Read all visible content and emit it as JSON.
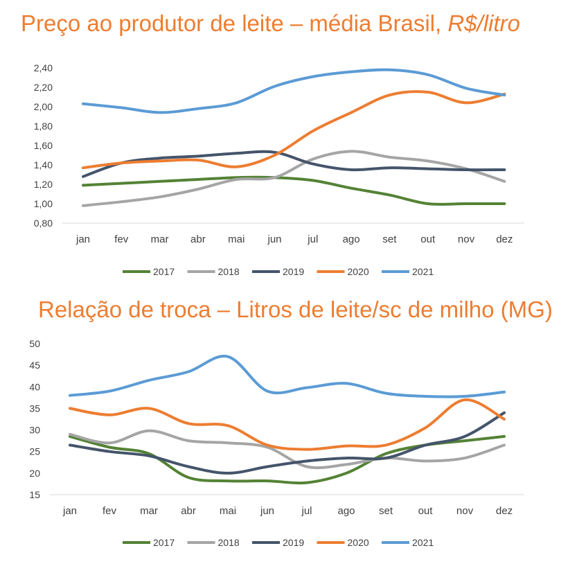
{
  "chart_data": [
    {
      "type": "line",
      "title": "Preço ao produtor de leite – média Brasil,",
      "title_suffix": "R$/litro",
      "categories": [
        "jan",
        "fev",
        "mar",
        "abr",
        "mai",
        "jun",
        "jul",
        "ago",
        "set",
        "out",
        "nov",
        "dez"
      ],
      "ylim": [
        0.8,
        2.4
      ],
      "yticks": [
        "0,80",
        "1,00",
        "1,20",
        "1,40",
        "1,60",
        "1,80",
        "2,00",
        "2,20",
        "2,40"
      ],
      "yticks_values": [
        0.8,
        1.0,
        1.2,
        1.4,
        1.6,
        1.8,
        2.0,
        2.2,
        2.4
      ],
      "grid": false,
      "legend": "bottom",
      "series": [
        {
          "name": "2017",
          "color": "#548235",
          "values": [
            1.19,
            1.21,
            1.23,
            1.25,
            1.27,
            1.27,
            1.24,
            1.16,
            1.09,
            1.0,
            1.0,
            1.0
          ]
        },
        {
          "name": "2018",
          "color": "#A5A5A5",
          "values": [
            0.98,
            1.02,
            1.07,
            1.15,
            1.25,
            1.27,
            1.46,
            1.54,
            1.48,
            1.44,
            1.36,
            1.23
          ]
        },
        {
          "name": "2019",
          "color": "#44546A",
          "values": [
            1.28,
            1.42,
            1.47,
            1.49,
            1.52,
            1.53,
            1.41,
            1.35,
            1.37,
            1.36,
            1.35,
            1.35
          ]
        },
        {
          "name": "2020",
          "color": "#ED7D31",
          "values": [
            1.37,
            1.42,
            1.44,
            1.45,
            1.38,
            1.5,
            1.75,
            1.94,
            2.12,
            2.15,
            2.04,
            2.13
          ]
        },
        {
          "name": "2021",
          "color": "#5B9BD5",
          "values": [
            2.03,
            1.99,
            1.94,
            1.98,
            2.04,
            2.21,
            2.31,
            2.36,
            2.38,
            2.33,
            2.19,
            2.12
          ]
        }
      ]
    },
    {
      "type": "line",
      "title": "Relação de troca – Litros de leite/sc de milho (MG)",
      "categories": [
        "jan",
        "fev",
        "mar",
        "abr",
        "mai",
        "jun",
        "jul",
        "ago",
        "set",
        "out",
        "nov",
        "dez"
      ],
      "ylim": [
        15,
        50
      ],
      "yticks": [
        "15",
        "20",
        "25",
        "30",
        "35",
        "40",
        "45",
        "50"
      ],
      "yticks_values": [
        15,
        20,
        25,
        30,
        35,
        40,
        45,
        50
      ],
      "grid": false,
      "legend": "bottom",
      "series": [
        {
          "name": "2017",
          "color": "#548235",
          "values": [
            28.5,
            26.0,
            24.5,
            19.0,
            18.2,
            18.2,
            17.8,
            20.0,
            24.5,
            26.5,
            27.5,
            28.5
          ]
        },
        {
          "name": "2018",
          "color": "#A5A5A5",
          "values": [
            29.0,
            27.0,
            29.8,
            27.5,
            27.0,
            26.0,
            21.5,
            22.0,
            23.5,
            22.8,
            23.5,
            26.5
          ]
        },
        {
          "name": "2019",
          "color": "#44546A",
          "values": [
            26.5,
            25.0,
            24.0,
            21.5,
            20.0,
            21.5,
            22.8,
            23.5,
            23.5,
            26.5,
            28.5,
            34.0
          ]
        },
        {
          "name": "2020",
          "color": "#ED7D31",
          "values": [
            35.0,
            33.5,
            35.0,
            31.5,
            31.0,
            26.5,
            25.5,
            26.3,
            26.5,
            30.5,
            37.0,
            32.5
          ]
        },
        {
          "name": "2021",
          "color": "#5B9BD5",
          "values": [
            38.0,
            39.0,
            41.5,
            43.5,
            47.0,
            39.0,
            39.8,
            40.8,
            38.5,
            37.8,
            37.8,
            38.8
          ]
        }
      ]
    }
  ]
}
